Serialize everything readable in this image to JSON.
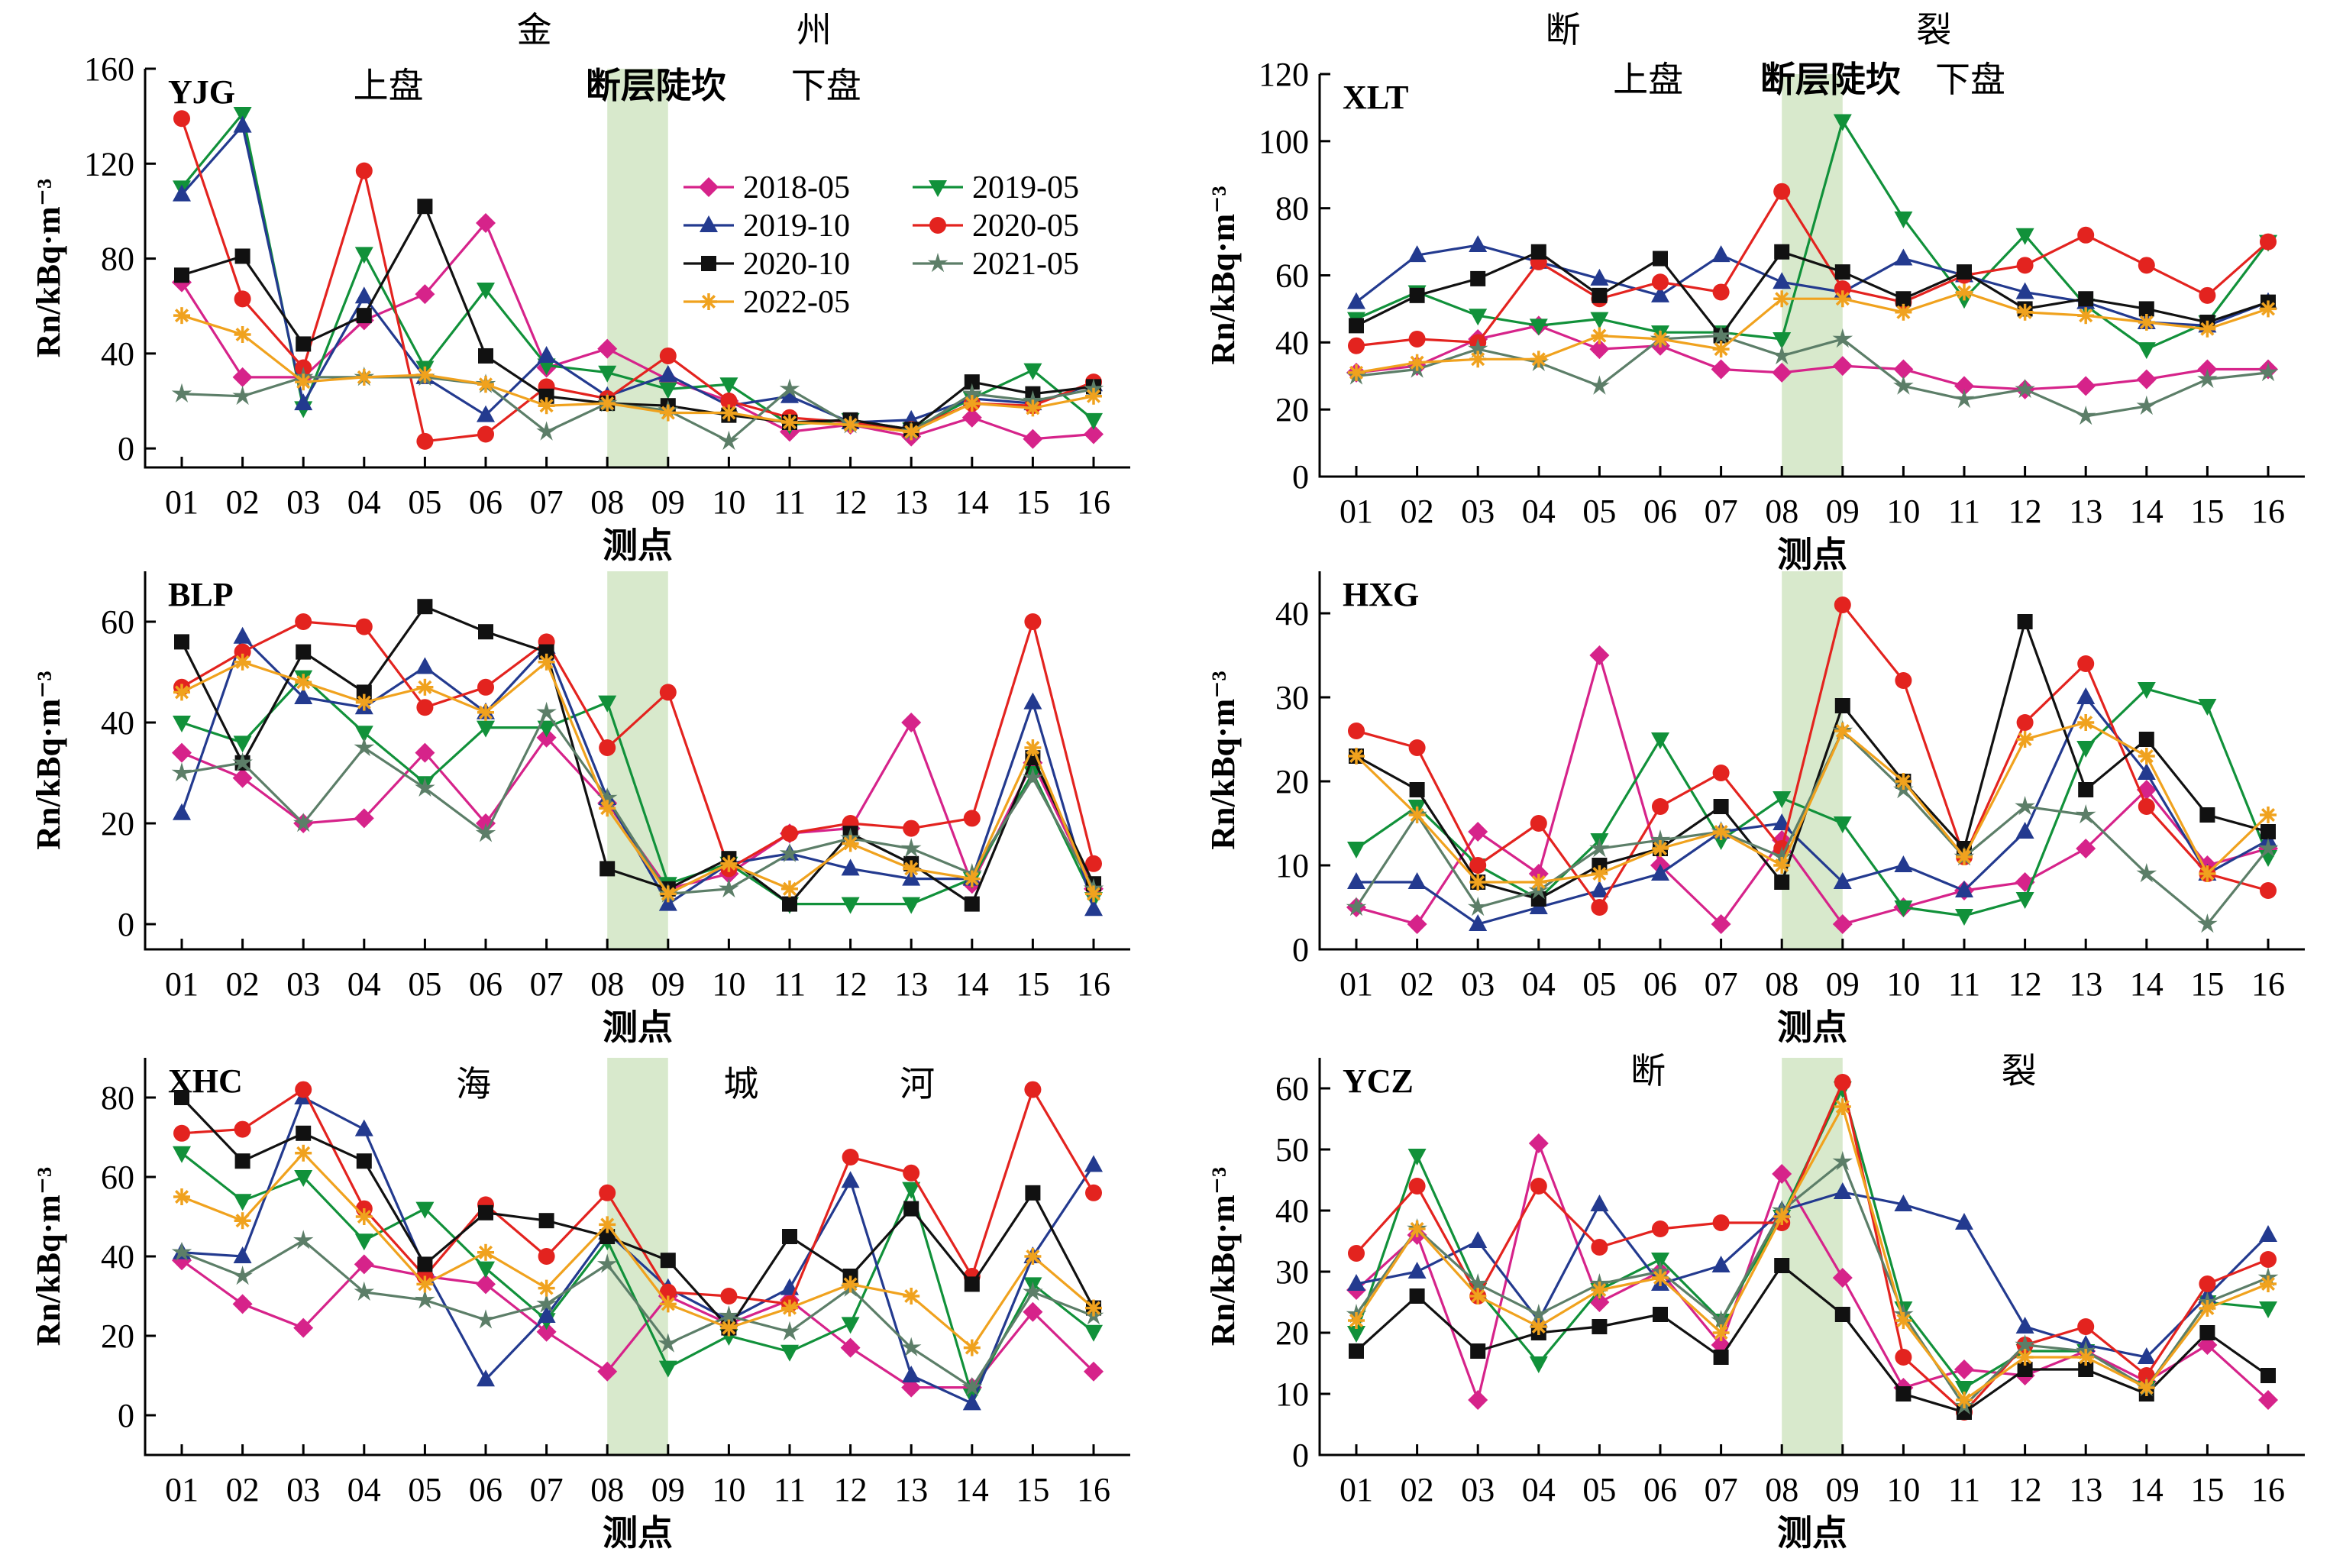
{
  "colors": {
    "2018-05": "#d6238a",
    "2019-05": "#11913a",
    "2019-10": "#233a8f",
    "2020-05": "#e3231f",
    "2020-10": "#111111",
    "2021-05": "#5c7e68",
    "2022-05": "#f0a21e",
    "zone": "#d8e9cc"
  },
  "legend": [
    "2018-05",
    "2019-05",
    "2019-10",
    "2020-05",
    "2020-10",
    "2021-05",
    "2022-05"
  ],
  "chart_data": [
    {
      "type": "line",
      "station": "YJG",
      "ylabel": "Rn/kBq·m⁻³",
      "xlabel": "测点",
      "categories": [
        "01",
        "02",
        "03",
        "04",
        "05",
        "06",
        "07",
        "08",
        "09",
        "10",
        "11",
        "12",
        "13",
        "14",
        "15",
        "16"
      ],
      "ylim": [
        -8,
        160
      ],
      "yticks": [
        0,
        40,
        80,
        120,
        160
      ],
      "annotations": [
        "金",
        "州",
        "上盘",
        "断层陡坎",
        "下盘"
      ],
      "series": [
        {
          "name": "2018-05",
          "values": [
            70,
            30,
            30,
            54,
            65,
            95,
            34,
            42,
            29,
            20,
            7,
            10,
            5,
            13,
            4,
            6
          ]
        },
        {
          "name": "2019-05",
          "values": [
            110,
            141,
            17,
            82,
            34,
            67,
            35,
            32,
            25,
            27,
            10,
            12,
            8,
            21,
            33,
            12
          ]
        },
        {
          "name": "2019-10",
          "values": [
            107,
            136,
            19,
            64,
            30,
            14,
            39,
            22,
            31,
            18,
            22,
            11,
            12,
            21,
            19,
            27
          ]
        },
        {
          "name": "2020-05",
          "values": [
            139,
            63,
            34,
            117,
            3,
            6,
            26,
            21,
            39,
            20,
            13,
            11,
            8,
            19,
            18,
            28
          ]
        },
        {
          "name": "2020-10",
          "values": [
            73,
            81,
            44,
            56,
            102,
            39,
            22,
            19,
            18,
            14,
            11,
            12,
            8,
            28,
            23,
            26
          ]
        },
        {
          "name": "2021-05",
          "values": [
            23,
            22,
            30,
            30,
            30,
            27,
            7,
            19,
            16,
            3,
            25,
            10,
            7,
            23,
            20,
            25
          ]
        },
        {
          "name": "2022-05",
          "values": [
            56,
            48,
            28,
            30,
            31,
            27,
            18,
            19,
            15,
            15,
            11,
            10,
            7,
            19,
            17,
            22
          ]
        }
      ]
    },
    {
      "type": "line",
      "station": "XLT",
      "ylabel": "Rn/kBq·m⁻³",
      "xlabel": "测点",
      "categories": [
        "01",
        "02",
        "03",
        "04",
        "05",
        "06",
        "07",
        "08",
        "09",
        "10",
        "11",
        "12",
        "13",
        "14",
        "15",
        "16"
      ],
      "ylim": [
        0,
        120
      ],
      "yticks": [
        0,
        20,
        40,
        60,
        80,
        100,
        120
      ],
      "annotations": [
        "断",
        "裂",
        "上盘",
        "断层陡坎",
        "下盘"
      ],
      "series": [
        {
          "name": "2018-05",
          "values": [
            31,
            33,
            41,
            45,
            38,
            39,
            32,
            31,
            33,
            32,
            27,
            26,
            27,
            29,
            32,
            32
          ]
        },
        {
          "name": "2019-05",
          "values": [
            47,
            55,
            48,
            45,
            47,
            43,
            43,
            41,
            106,
            77,
            53,
            72,
            51,
            38,
            46,
            70
          ]
        },
        {
          "name": "2019-10",
          "values": [
            52,
            66,
            69,
            64,
            59,
            54,
            66,
            58,
            55,
            65,
            60,
            55,
            52,
            46,
            45,
            52
          ]
        },
        {
          "name": "2020-05",
          "values": [
            39,
            41,
            40,
            64,
            53,
            58,
            55,
            85,
            56,
            52,
            60,
            63,
            72,
            63,
            54,
            70
          ]
        },
        {
          "name": "2020-10",
          "values": [
            45,
            54,
            59,
            67,
            54,
            65,
            42,
            67,
            61,
            53,
            61,
            50,
            53,
            50,
            46,
            52
          ]
        },
        {
          "name": "2021-05",
          "values": [
            30,
            32,
            38,
            34,
            27,
            41,
            42,
            36,
            41,
            27,
            23,
            26,
            18,
            21,
            29,
            31
          ]
        },
        {
          "name": "2022-05",
          "values": [
            31,
            34,
            35,
            35,
            42,
            41,
            38,
            53,
            53,
            49,
            55,
            49,
            48,
            46,
            44,
            50
          ]
        }
      ]
    },
    {
      "type": "line",
      "station": "BLP",
      "ylabel": "Rn/kBq·m⁻³",
      "xlabel": "测点",
      "categories": [
        "01",
        "02",
        "03",
        "04",
        "05",
        "06",
        "07",
        "08",
        "09",
        "10",
        "11",
        "12",
        "13",
        "14",
        "15",
        "16"
      ],
      "ylim": [
        -5,
        70
      ],
      "yticks": [
        0,
        20,
        40,
        60
      ],
      "annotations": [],
      "series": [
        {
          "name": "2018-05",
          "values": [
            34,
            29,
            20,
            21,
            34,
            20,
            37,
            24,
            7,
            10,
            18,
            19,
            40,
            8,
            32,
            7
          ]
        },
        {
          "name": "2019-05",
          "values": [
            40,
            36,
            49,
            38,
            28,
            39,
            39,
            44,
            8,
            12,
            4,
            4,
            4,
            9,
            30,
            5
          ]
        },
        {
          "name": "2019-10",
          "values": [
            22,
            57,
            45,
            43,
            51,
            42,
            55,
            25,
            4,
            12,
            14,
            11,
            9,
            9,
            44,
            3
          ]
        },
        {
          "name": "2020-05",
          "values": [
            47,
            54,
            60,
            59,
            43,
            47,
            56,
            35,
            46,
            11,
            18,
            20,
            19,
            21,
            60,
            12
          ]
        },
        {
          "name": "2020-10",
          "values": [
            56,
            32,
            54,
            46,
            63,
            58,
            54,
            11,
            7,
            13,
            4,
            18,
            12,
            4,
            33,
            8
          ]
        },
        {
          "name": "2021-05",
          "values": [
            30,
            32,
            20,
            35,
            27,
            18,
            42,
            25,
            6,
            7,
            14,
            17,
            15,
            10,
            29,
            7
          ]
        },
        {
          "name": "2022-05",
          "values": [
            46,
            52,
            48,
            44,
            47,
            42,
            52,
            23,
            6,
            12,
            7,
            16,
            11,
            9,
            35,
            6
          ]
        }
      ]
    },
    {
      "type": "line",
      "station": "HXG",
      "ylabel": "Rn/kBq·m⁻³",
      "xlabel": "测点",
      "categories": [
        "01",
        "02",
        "03",
        "04",
        "05",
        "06",
        "07",
        "08",
        "09",
        "10",
        "11",
        "12",
        "13",
        "14",
        "15",
        "16"
      ],
      "ylim": [
        0,
        45
      ],
      "yticks": [
        0,
        10,
        20,
        30,
        40
      ],
      "annotations": [],
      "series": [
        {
          "name": "2018-05",
          "values": [
            5,
            3,
            14,
            9,
            35,
            10,
            3,
            13,
            3,
            5,
            7,
            8,
            12,
            19,
            10,
            12
          ]
        },
        {
          "name": "2019-05",
          "values": [
            12,
            17,
            10,
            6,
            13,
            25,
            13,
            18,
            15,
            5,
            4,
            6,
            24,
            31,
            29,
            11
          ]
        },
        {
          "name": "2019-10",
          "values": [
            8,
            8,
            3,
            5,
            7,
            9,
            14,
            15,
            8,
            10,
            7,
            14,
            30,
            21,
            9,
            13
          ]
        },
        {
          "name": "2020-05",
          "values": [
            26,
            24,
            10,
            15,
            5,
            17,
            21,
            12,
            41,
            32,
            11,
            27,
            34,
            17,
            9,
            7
          ]
        },
        {
          "name": "2020-10",
          "values": [
            23,
            19,
            8,
            6,
            10,
            12,
            17,
            8,
            29,
            20,
            12,
            39,
            19,
            25,
            16,
            14
          ]
        },
        {
          "name": "2021-05",
          "values": [
            5,
            16,
            5,
            7,
            12,
            13,
            14,
            11,
            26,
            19,
            11,
            17,
            16,
            9,
            3,
            12
          ]
        },
        {
          "name": "2022-05",
          "values": [
            23,
            16,
            8,
            8,
            9,
            12,
            14,
            10,
            26,
            20,
            11,
            25,
            27,
            23,
            9,
            16
          ]
        }
      ]
    },
    {
      "type": "line",
      "station": "XHC",
      "ylabel": "Rn/kBq·m⁻³",
      "xlabel": "测点",
      "categories": [
        "01",
        "02",
        "03",
        "04",
        "05",
        "06",
        "07",
        "08",
        "09",
        "10",
        "11",
        "12",
        "13",
        "14",
        "15",
        "16"
      ],
      "ylim": [
        -10,
        90
      ],
      "yticks": [
        0,
        20,
        40,
        60,
        80
      ],
      "annotations": [
        "海",
        "城",
        "河"
      ],
      "series": [
        {
          "name": "2018-05",
          "values": [
            39,
            28,
            22,
            38,
            35,
            33,
            21,
            11,
            30,
            23,
            29,
            17,
            7,
            7,
            26,
            11
          ]
        },
        {
          "name": "2019-05",
          "values": [
            66,
            54,
            60,
            44,
            52,
            37,
            24,
            44,
            12,
            20,
            16,
            23,
            57,
            5,
            33,
            21
          ]
        },
        {
          "name": "2019-10",
          "values": [
            41,
            40,
            80,
            72,
            37,
            9,
            25,
            46,
            32,
            24,
            32,
            59,
            10,
            3,
            40,
            63
          ]
        },
        {
          "name": "2020-05",
          "values": [
            71,
            72,
            82,
            52,
            35,
            53,
            40,
            56,
            31,
            30,
            28,
            65,
            61,
            35,
            82,
            56
          ]
        },
        {
          "name": "2020-10",
          "values": [
            80,
            64,
            71,
            64,
            38,
            51,
            49,
            45,
            39,
            22,
            45,
            35,
            52,
            33,
            56,
            27
          ]
        },
        {
          "name": "2021-05",
          "values": [
            41,
            35,
            44,
            31,
            29,
            24,
            28,
            38,
            18,
            25,
            21,
            32,
            17,
            7,
            31,
            25
          ]
        },
        {
          "name": "2022-05",
          "values": [
            55,
            49,
            66,
            50,
            33,
            41,
            32,
            48,
            28,
            22,
            27,
            33,
            30,
            17,
            40,
            27
          ]
        }
      ]
    },
    {
      "type": "line",
      "station": "YCZ",
      "ylabel": "Rn/kBq·m⁻³",
      "xlabel": "测点",
      "categories": [
        "01",
        "02",
        "03",
        "04",
        "05",
        "06",
        "07",
        "08",
        "09",
        "10",
        "11",
        "12",
        "13",
        "14",
        "15",
        "16"
      ],
      "ylim": [
        0,
        65
      ],
      "yticks": [
        0,
        10,
        20,
        30,
        40,
        50,
        60
      ],
      "annotations": [
        "断",
        "裂"
      ],
      "series": [
        {
          "name": "2018-05",
          "values": [
            27,
            36,
            9,
            51,
            25,
            30,
            18,
            46,
            29,
            11,
            14,
            13,
            17,
            12,
            18,
            9
          ]
        },
        {
          "name": "2019-05",
          "values": [
            20,
            49,
            27,
            15,
            27,
            32,
            22,
            39,
            60,
            24,
            11,
            17,
            17,
            11,
            25,
            24
          ]
        },
        {
          "name": "2019-10",
          "values": [
            28,
            30,
            35,
            22,
            41,
            28,
            31,
            40,
            43,
            41,
            38,
            21,
            18,
            16,
            26,
            36
          ]
        },
        {
          "name": "2020-05",
          "values": [
            33,
            44,
            26,
            44,
            34,
            37,
            38,
            38,
            61,
            16,
            7,
            18,
            21,
            13,
            28,
            32
          ]
        },
        {
          "name": "2020-10",
          "values": [
            17,
            26,
            17,
            20,
            21,
            23,
            16,
            31,
            23,
            10,
            7,
            14,
            14,
            10,
            20,
            13
          ]
        },
        {
          "name": "2021-05",
          "values": [
            23,
            37,
            28,
            23,
            28,
            30,
            22,
            40,
            48,
            23,
            8,
            18,
            17,
            11,
            25,
            29
          ]
        },
        {
          "name": "2022-05",
          "values": [
            22,
            37,
            26,
            21,
            27,
            29,
            20,
            39,
            57,
            22,
            9,
            16,
            16,
            11,
            24,
            28
          ]
        }
      ]
    }
  ]
}
